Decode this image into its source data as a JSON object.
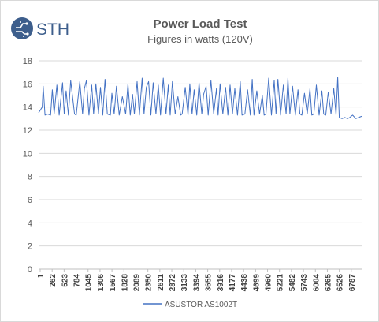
{
  "logo": {
    "text": "STH",
    "color": "#3d5e8c"
  },
  "chart_data": {
    "type": "line",
    "title": "Power Load Test",
    "subtitle": "Figures in watts (120V)",
    "xlabel": "",
    "ylabel": "",
    "ylim": [
      0,
      18
    ],
    "y_ticks": [
      0,
      2,
      4,
      6,
      8,
      10,
      12,
      14,
      16,
      18
    ],
    "x_range": [
      1,
      7048
    ],
    "x_tick_labels": [
      "1",
      "262",
      "523",
      "784",
      "1045",
      "1306",
      "1567",
      "1828",
      "2089",
      "2350",
      "2611",
      "2872",
      "3133",
      "3394",
      "3655",
      "3916",
      "4177",
      "4438",
      "4699",
      "4960",
      "5221",
      "5482",
      "5743",
      "6004",
      "6265",
      "6526",
      "6787"
    ],
    "grid": true,
    "legend_position": "bottom",
    "colors": {
      "series": "#4472c4",
      "grid": "#d9d9d9",
      "text": "#595959"
    },
    "series": [
      {
        "name": "ASUSTOR AS1002T",
        "x": [
          1,
          80,
          100,
          140,
          200,
          262,
          300,
          340,
          400,
          450,
          523,
          560,
          600,
          650,
          700,
          784,
          820,
          900,
          960,
          1000,
          1045,
          1100,
          1160,
          1200,
          1250,
          1306,
          1350,
          1400,
          1450,
          1500,
          1567,
          1600,
          1650,
          1700,
          1760,
          1828,
          1900,
          1950,
          2000,
          2050,
          2089,
          2150,
          2200,
          2260,
          2300,
          2350,
          2400,
          2450,
          2500,
          2560,
          2611,
          2660,
          2720,
          2780,
          2830,
          2872,
          2920,
          2980,
          3040,
          3100,
          3133,
          3200,
          3260,
          3300,
          3350,
          3394,
          3450,
          3500,
          3560,
          3600,
          3655,
          3700,
          3760,
          3820,
          3880,
          3916,
          3960,
          4020,
          4080,
          4130,
          4177,
          4230,
          4280,
          4340,
          4400,
          4438,
          4500,
          4560,
          4620,
          4660,
          4699,
          4760,
          4820,
          4880,
          4920,
          4960,
          5020,
          5080,
          5140,
          5180,
          5221,
          5280,
          5340,
          5400,
          5440,
          5482,
          5540,
          5600,
          5660,
          5700,
          5743,
          5800,
          5860,
          5920,
          5960,
          6004,
          6060,
          6120,
          6180,
          6220,
          6265,
          6320,
          6380,
          6440,
          6490,
          6526,
          6560,
          6620,
          6680,
          6740,
          6787,
          6850,
          6920,
          6980,
          7048
        ],
        "y": [
          13.5,
          14.0,
          15.8,
          13.3,
          13.4,
          13.3,
          15.5,
          13.4,
          15.9,
          13.3,
          16.1,
          13.4,
          15.4,
          13.3,
          16.3,
          13.4,
          13.3,
          16.2,
          13.4,
          15.6,
          16.3,
          13.3,
          15.9,
          13.4,
          16.0,
          13.4,
          15.7,
          13.3,
          16.4,
          13.4,
          13.3,
          15.2,
          13.4,
          15.8,
          13.3,
          14.9,
          13.4,
          16.0,
          13.3,
          15.1,
          13.4,
          16.2,
          13.3,
          16.5,
          13.4,
          15.7,
          16.2,
          13.3,
          16.1,
          13.4,
          15.9,
          13.3,
          16.5,
          13.4,
          15.9,
          13.3,
          16.2,
          13.4,
          14.9,
          13.3,
          13.4,
          15.7,
          13.3,
          16.0,
          13.4,
          15.5,
          13.3,
          16.1,
          13.4,
          15.1,
          15.8,
          13.3,
          16.3,
          13.4,
          15.6,
          13.3,
          16.0,
          13.4,
          15.7,
          13.3,
          15.9,
          13.4,
          15.6,
          13.3,
          16.2,
          13.3,
          13.4,
          15.5,
          13.3,
          16.4,
          13.3,
          15.4,
          13.4,
          15.0,
          13.3,
          13.4,
          16.5,
          13.3,
          16.3,
          13.4,
          16.4,
          13.3,
          15.9,
          13.4,
          16.5,
          13.4,
          15.8,
          13.3,
          15.5,
          13.4,
          13.3,
          15.2,
          13.4,
          15.6,
          13.3,
          13.4,
          15.9,
          13.3,
          15.4,
          13.4,
          13.3,
          15.3,
          13.4,
          15.6,
          13.3,
          16.6,
          13.1,
          13.0,
          13.1,
          13.0,
          13.1,
          13.3,
          13.0,
          13.1,
          13.2
        ]
      }
    ]
  }
}
